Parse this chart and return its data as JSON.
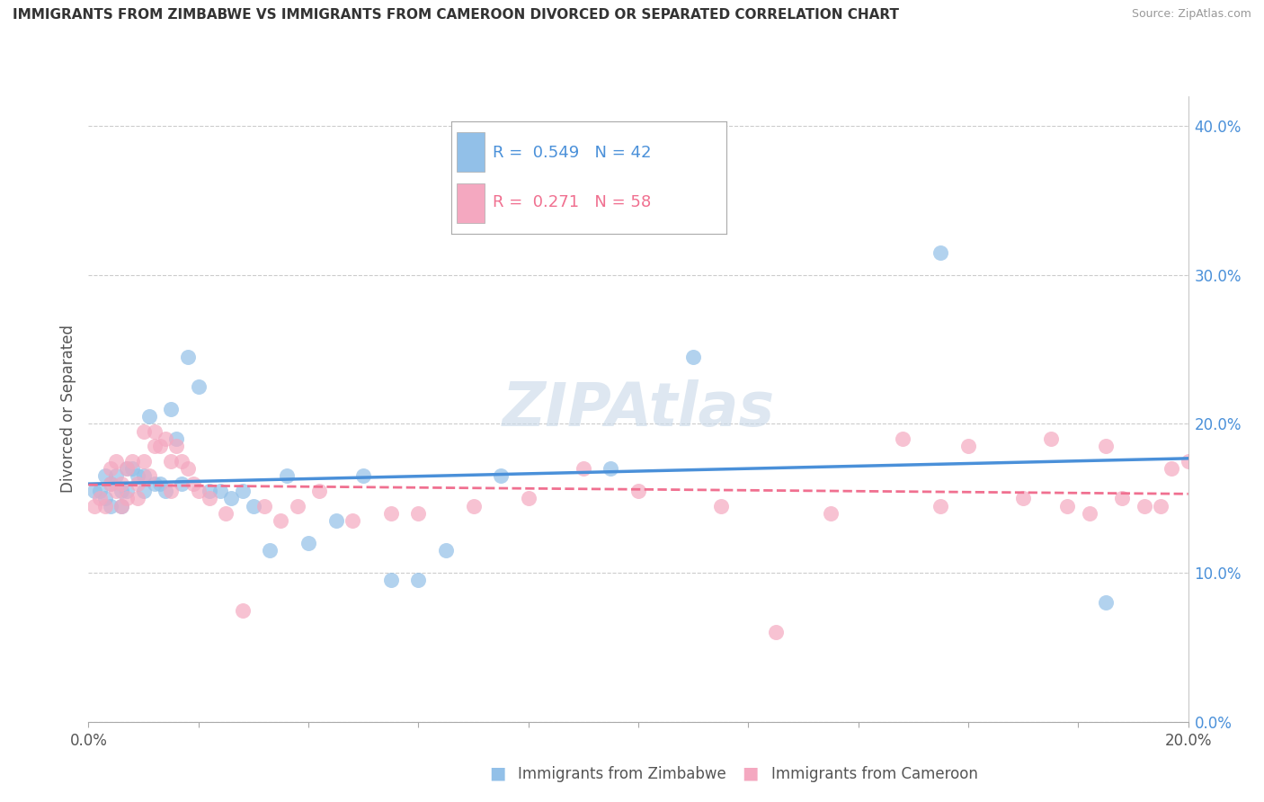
{
  "title": "IMMIGRANTS FROM ZIMBABWE VS IMMIGRANTS FROM CAMEROON DIVORCED OR SEPARATED CORRELATION CHART",
  "source": "Source: ZipAtlas.com",
  "ylabel": "Divorced or Separated",
  "blue_color": "#92c0e8",
  "pink_color": "#f4a8c0",
  "blue_line_color": "#4a90d9",
  "pink_line_color": "#f07090",
  "xlim": [
    0.0,
    0.2
  ],
  "ylim": [
    0.0,
    0.42
  ],
  "yticks": [
    0.0,
    0.1,
    0.2,
    0.3,
    0.4
  ],
  "ytick_labels": [
    "0.0%",
    "10.0%",
    "20.0%",
    "30.0%",
    "40.0%"
  ],
  "xtick_labels": [
    "0.0%",
    "",
    "",
    "",
    "",
    "",
    "",
    "",
    "",
    "",
    "20.0%"
  ],
  "legend_entries": [
    {
      "label": "Immigrants from Zimbabwe",
      "color": "#92c0e8",
      "R": 0.549,
      "N": 42
    },
    {
      "label": "Immigrants from Cameroon",
      "color": "#f4a8c0",
      "R": 0.271,
      "N": 58
    }
  ],
  "watermark": "ZIPAtlas",
  "blue_scatter_x": [
    0.001,
    0.002,
    0.003,
    0.003,
    0.004,
    0.004,
    0.005,
    0.006,
    0.006,
    0.007,
    0.007,
    0.008,
    0.009,
    0.01,
    0.01,
    0.011,
    0.012,
    0.013,
    0.014,
    0.015,
    0.016,
    0.017,
    0.018,
    0.02,
    0.022,
    0.024,
    0.026,
    0.028,
    0.03,
    0.033,
    0.036,
    0.04,
    0.045,
    0.05,
    0.055,
    0.06,
    0.065,
    0.075,
    0.095,
    0.11,
    0.155,
    0.185
  ],
  "blue_scatter_y": [
    0.155,
    0.155,
    0.165,
    0.15,
    0.16,
    0.145,
    0.165,
    0.155,
    0.145,
    0.155,
    0.17,
    0.17,
    0.165,
    0.165,
    0.155,
    0.205,
    0.16,
    0.16,
    0.155,
    0.21,
    0.19,
    0.16,
    0.245,
    0.225,
    0.155,
    0.155,
    0.15,
    0.155,
    0.145,
    0.115,
    0.165,
    0.12,
    0.135,
    0.165,
    0.095,
    0.095,
    0.115,
    0.165,
    0.17,
    0.245,
    0.315,
    0.08
  ],
  "pink_scatter_x": [
    0.001,
    0.002,
    0.003,
    0.004,
    0.004,
    0.005,
    0.005,
    0.006,
    0.006,
    0.007,
    0.007,
    0.008,
    0.009,
    0.009,
    0.01,
    0.01,
    0.011,
    0.012,
    0.012,
    0.013,
    0.014,
    0.015,
    0.015,
    0.016,
    0.017,
    0.018,
    0.019,
    0.02,
    0.022,
    0.025,
    0.028,
    0.032,
    0.035,
    0.038,
    0.042,
    0.048,
    0.055,
    0.06,
    0.07,
    0.08,
    0.09,
    0.1,
    0.115,
    0.125,
    0.135,
    0.148,
    0.155,
    0.16,
    0.17,
    0.175,
    0.178,
    0.182,
    0.185,
    0.188,
    0.192,
    0.195,
    0.197,
    0.2
  ],
  "pink_scatter_y": [
    0.145,
    0.15,
    0.145,
    0.16,
    0.17,
    0.155,
    0.175,
    0.16,
    0.145,
    0.15,
    0.17,
    0.175,
    0.15,
    0.16,
    0.175,
    0.195,
    0.165,
    0.185,
    0.195,
    0.185,
    0.19,
    0.175,
    0.155,
    0.185,
    0.175,
    0.17,
    0.16,
    0.155,
    0.15,
    0.14,
    0.075,
    0.145,
    0.135,
    0.145,
    0.155,
    0.135,
    0.14,
    0.14,
    0.145,
    0.15,
    0.17,
    0.155,
    0.145,
    0.06,
    0.14,
    0.19,
    0.145,
    0.185,
    0.15,
    0.19,
    0.145,
    0.14,
    0.185,
    0.15,
    0.145,
    0.145,
    0.17,
    0.175
  ]
}
